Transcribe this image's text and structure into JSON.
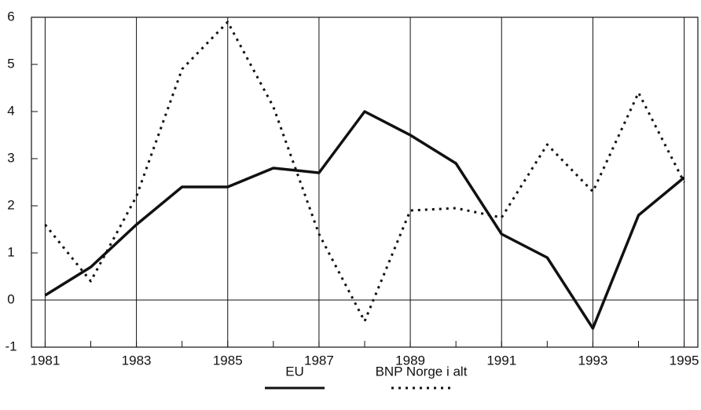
{
  "chart_data": {
    "type": "line",
    "x": [
      1981,
      1982,
      1983,
      1984,
      1985,
      1986,
      1987,
      1988,
      1989,
      1990,
      1991,
      1992,
      1993,
      1994,
      1995
    ],
    "series": [
      {
        "name": "EU",
        "color": "#111111",
        "style": "solid",
        "values": [
          0.1,
          0.7,
          1.6,
          2.4,
          2.4,
          2.8,
          2.7,
          4.0,
          3.5,
          2.9,
          1.4,
          0.9,
          -0.6,
          1.8,
          2.6
        ]
      },
      {
        "name": "BNP Norge i alt",
        "color": "#111111",
        "style": "dotted",
        "values": [
          1.6,
          0.4,
          2.2,
          4.9,
          5.9,
          4.1,
          1.4,
          -0.45,
          1.9,
          1.95,
          1.75,
          3.3,
          2.3,
          4.4,
          2.5
        ]
      }
    ],
    "xlim": [
      1980.7,
      1995.3
    ],
    "xticks": [
      1981,
      1983,
      1985,
      1987,
      1989,
      1991,
      1993,
      1995
    ],
    "ylim": [
      -1,
      6
    ],
    "yticks": [
      -1,
      0,
      1,
      2,
      3,
      4,
      5,
      6
    ],
    "grid": true,
    "legend": "bottom"
  }
}
